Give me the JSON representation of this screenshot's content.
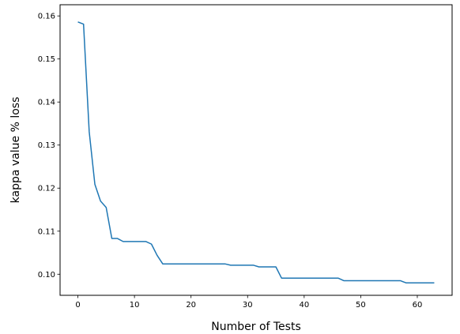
{
  "chart_data": {
    "type": "line",
    "xlabel": "Number of Tests",
    "ylabel": "kappa value % loss",
    "xlim": [
      -3.15,
      66.15
    ],
    "ylim": [
      0.0951,
      0.1626
    ],
    "xticks": [
      0,
      10,
      20,
      30,
      40,
      50,
      60
    ],
    "yticks": [
      0.1,
      0.11,
      0.12,
      0.13,
      0.14,
      0.15,
      0.16
    ],
    "ytick_format_decimals": 2,
    "grid": false,
    "color": "#1f77b4",
    "series": [
      {
        "x": [
          0,
          1,
          2,
          3,
          4,
          5,
          6,
          7,
          8,
          9,
          10,
          11,
          12,
          13,
          14,
          15,
          16,
          17,
          18,
          19,
          20,
          21,
          22,
          23,
          24,
          25,
          26,
          27,
          28,
          29,
          30,
          31,
          32,
          33,
          34,
          35,
          36,
          37,
          38,
          39,
          40,
          41,
          42,
          43,
          44,
          45,
          46,
          47,
          48,
          49,
          50,
          51,
          52,
          53,
          54,
          55,
          56,
          57,
          58,
          59,
          60,
          61,
          62,
          63
        ],
        "y": [
          0.1586,
          0.1581,
          0.1331,
          0.1209,
          0.117,
          0.1155,
          0.1083,
          0.1083,
          0.1076,
          0.1076,
          0.1076,
          0.1076,
          0.1076,
          0.107,
          0.1044,
          0.1024,
          0.1024,
          0.1024,
          0.1024,
          0.1024,
          0.1024,
          0.1024,
          0.1024,
          0.1024,
          0.1024,
          0.1024,
          0.1024,
          0.1021,
          0.1021,
          0.1021,
          0.1021,
          0.1021,
          0.1017,
          0.1017,
          0.1017,
          0.1017,
          0.0991,
          0.0991,
          0.0991,
          0.0991,
          0.0991,
          0.0991,
          0.0991,
          0.0991,
          0.0991,
          0.0991,
          0.0991,
          0.0985,
          0.0985,
          0.0985,
          0.0985,
          0.0985,
          0.0985,
          0.0985,
          0.0985,
          0.0985,
          0.0985,
          0.0985,
          0.098,
          0.098,
          0.098,
          0.098,
          0.098,
          0.098
        ]
      }
    ]
  }
}
